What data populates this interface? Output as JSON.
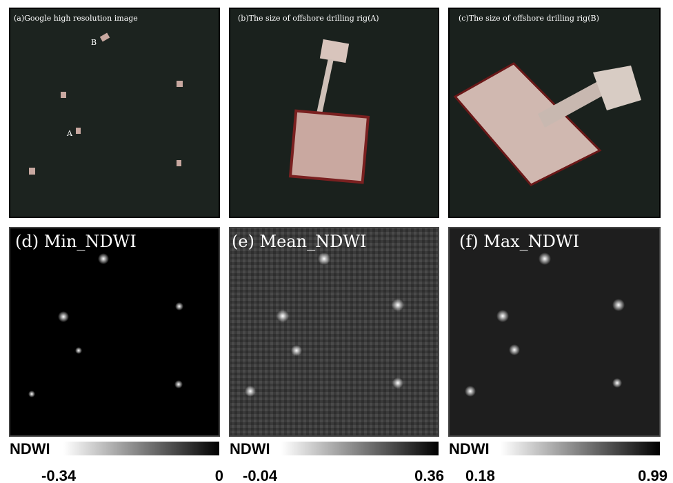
{
  "panels": [
    {
      "label": "(a)Google high resolution image",
      "points": [
        "A",
        "B"
      ]
    },
    {
      "label": "(b)The size of offshore drilling rig(A)"
    },
    {
      "label": "(c)The size of offshore drilling rig(B)"
    },
    {
      "label": "(d) Min_NDWI"
    },
    {
      "label": "(e) Mean_NDWI"
    },
    {
      "label": "(f) Max_NDWI"
    }
  ],
  "colorbars": [
    {
      "title": "NDWI",
      "min": "-0.34",
      "max": "0"
    },
    {
      "title": "NDWI",
      "min": "-0.04",
      "max": "0.36"
    },
    {
      "title": "NDWI",
      "min": "0.18",
      "max": "0.99"
    }
  ]
}
